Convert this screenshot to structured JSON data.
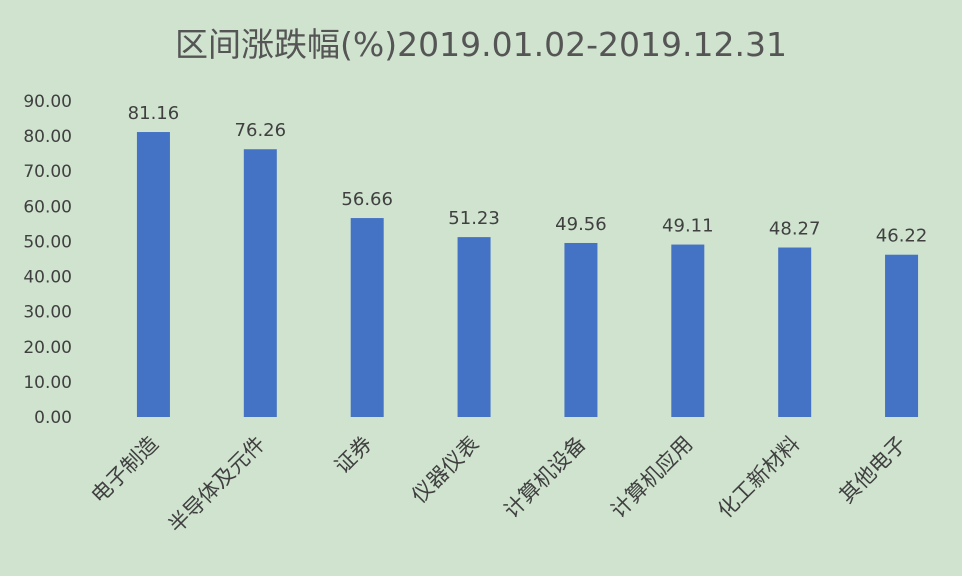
{
  "chart_data": {
    "type": "bar",
    "title": "区间涨跌幅(%)2019.01.02-2019.12.31",
    "xlabel": "",
    "ylabel": "",
    "categories": [
      "电子制造",
      "半导体及元件",
      "证券",
      "仪器仪表",
      "计算机设备",
      "计算机应用",
      "化工新材料",
      "其他电子"
    ],
    "values": [
      81.16,
      76.26,
      56.66,
      51.23,
      49.56,
      49.11,
      48.27,
      46.22
    ],
    "data_labels": [
      "81.16",
      "76.26",
      "56.66",
      "51.23",
      "49.56",
      "49.11",
      "48.27",
      "46.22"
    ],
    "ylim": [
      0,
      90
    ],
    "yticks": [
      "0.00",
      "10.00",
      "20.00",
      "30.00",
      "40.00",
      "50.00",
      "60.00",
      "70.00",
      "80.00",
      "90.00"
    ],
    "grid": false,
    "legend": "none",
    "colors": {
      "bar": "#4472c4",
      "background": "#cfe3cf",
      "text": "#404040"
    }
  }
}
